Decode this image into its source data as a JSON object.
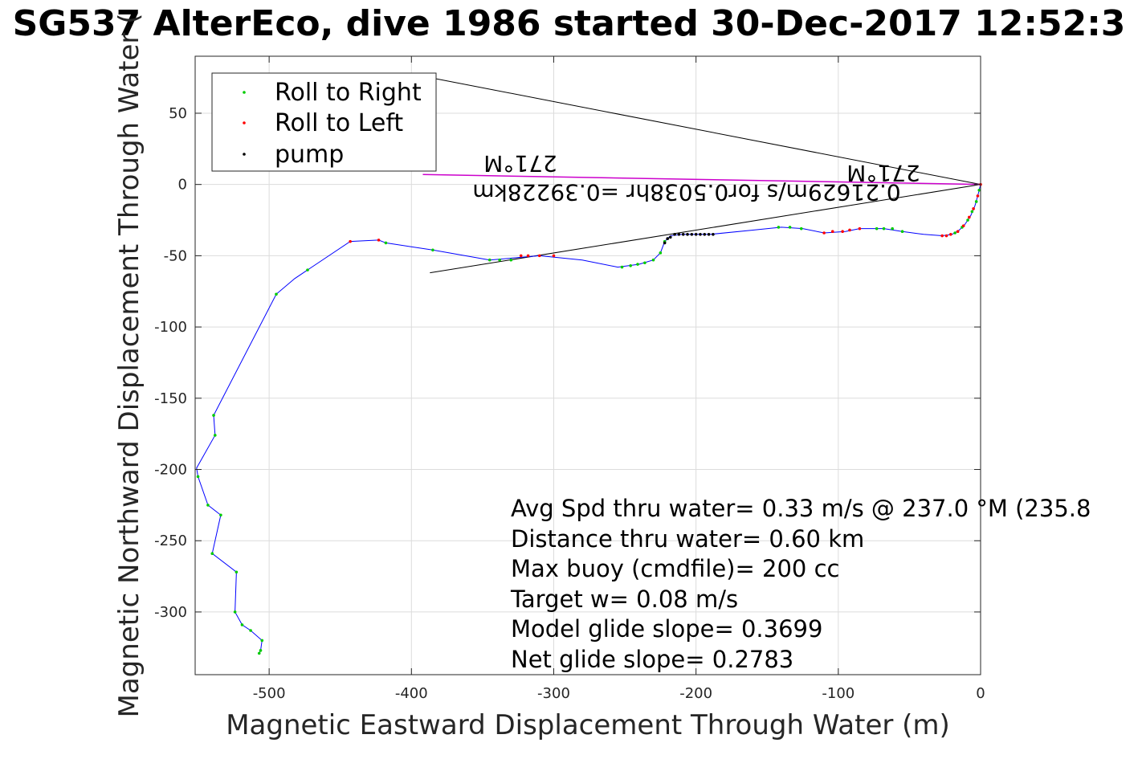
{
  "chart_data": {
    "type": "scatter",
    "title": "SG537 AlterEco, dive 1986 started 30-Dec-2017 12:52:3",
    "xlabel": "Magnetic Eastward Displacement Through Water (m)",
    "ylabel": "Magnetic Northward Displacement Through Water (",
    "xlim": [
      -552,
      0
    ],
    "ylim": [
      -344,
      90
    ],
    "xticks": [
      -500,
      -400,
      -300,
      -200,
      -100,
      0
    ],
    "yticks": [
      -300,
      -250,
      -200,
      -150,
      -100,
      -50,
      0,
      50
    ],
    "grid": true,
    "legend_position": "top-left",
    "colors": {
      "track": "#0000ff",
      "roll_right": "#00cc00",
      "roll_left": "#ff0000",
      "pump": "#000000",
      "current": "#cc00cc",
      "reference": "#000000"
    },
    "legend": [
      {
        "label": "Roll to Right",
        "color": "#00cc00"
      },
      {
        "label": "Roll to Left",
        "color": "#ff0000"
      },
      {
        "label": "pump",
        "color": "#000000"
      }
    ],
    "track": [
      [
        0,
        0
      ],
      [
        -2,
        -8
      ],
      [
        -4,
        -15
      ],
      [
        -7,
        -22
      ],
      [
        -11,
        -28
      ],
      [
        -15,
        -32
      ],
      [
        -20,
        -35
      ],
      [
        -27,
        -36
      ],
      [
        -40,
        -35
      ],
      [
        -55,
        -33
      ],
      [
        -68,
        -31
      ],
      [
        -85,
        -31
      ],
      [
        -95,
        -33
      ],
      [
        -110,
        -34
      ],
      [
        -125,
        -31
      ],
      [
        -140,
        -30
      ],
      [
        -160,
        -32
      ],
      [
        -190,
        -35
      ],
      [
        -210,
        -35
      ],
      [
        -218,
        -36
      ],
      [
        -222,
        -40
      ],
      [
        -225,
        -48
      ],
      [
        -230,
        -53
      ],
      [
        -240,
        -56
      ],
      [
        -255,
        -58
      ],
      [
        -280,
        -53
      ],
      [
        -310,
        -50
      ],
      [
        -345,
        -53
      ],
      [
        -385,
        -46
      ],
      [
        -418,
        -41
      ],
      [
        -423,
        -39
      ],
      [
        -443,
        -40
      ],
      [
        -473,
        -60
      ],
      [
        -482,
        -66
      ],
      [
        -495,
        -77
      ],
      [
        -539,
        -162
      ],
      [
        -538,
        -176
      ],
      [
        -551,
        -199
      ],
      [
        -550,
        -205
      ],
      [
        -543,
        -225
      ],
      [
        -534,
        -232
      ],
      [
        -540,
        -259
      ],
      [
        -523,
        -272
      ],
      [
        -524,
        -300
      ],
      [
        -519,
        -309
      ],
      [
        -513,
        -313
      ],
      [
        -505,
        -320
      ],
      [
        -506,
        -327
      ],
      [
        -507,
        -329
      ]
    ],
    "roll_right": [
      [
        -1,
        -4
      ],
      [
        -3,
        -12
      ],
      [
        -6,
        -19
      ],
      [
        -9,
        -25
      ],
      [
        -13,
        -30
      ],
      [
        -18,
        -34
      ],
      [
        -55,
        -33
      ],
      [
        -62,
        -31
      ],
      [
        -68,
        -31
      ],
      [
        -73,
        -31
      ],
      [
        -126,
        -31
      ],
      [
        -134,
        -30
      ],
      [
        -142,
        -30
      ],
      [
        -222,
        -40
      ],
      [
        -225,
        -48
      ],
      [
        -230,
        -53
      ],
      [
        -236,
        -55
      ],
      [
        -241,
        -56
      ],
      [
        -246,
        -57
      ],
      [
        -252,
        -58
      ],
      [
        -330,
        -53
      ],
      [
        -338,
        -53
      ],
      [
        -345,
        -53
      ],
      [
        -385,
        -46
      ],
      [
        -418,
        -41
      ],
      [
        -473,
        -60
      ],
      [
        -495,
        -77
      ],
      [
        -539,
        -162
      ],
      [
        -538,
        -176
      ],
      [
        -550,
        -205
      ],
      [
        -543,
        -225
      ],
      [
        -534,
        -232
      ],
      [
        -540,
        -259
      ],
      [
        -523,
        -272
      ],
      [
        -524,
        -300
      ],
      [
        -519,
        -309
      ],
      [
        -513,
        -313
      ],
      [
        -505,
        -320
      ],
      [
        -506,
        -327
      ],
      [
        -507,
        -329
      ]
    ],
    "roll_left": [
      [
        0,
        0
      ],
      [
        -2,
        -8
      ],
      [
        -5,
        -17
      ],
      [
        -8,
        -23
      ],
      [
        -12,
        -29
      ],
      [
        -16,
        -33
      ],
      [
        -21,
        -35
      ],
      [
        -24,
        -36
      ],
      [
        -27,
        -36
      ],
      [
        -85,
        -31
      ],
      [
        -92,
        -32
      ],
      [
        -97,
        -33
      ],
      [
        -104,
        -33
      ],
      [
        -110,
        -34
      ],
      [
        -300,
        -50
      ],
      [
        -310,
        -50
      ],
      [
        -318,
        -50
      ],
      [
        -323,
        -50
      ],
      [
        -443,
        -40
      ],
      [
        -423,
        -39
      ]
    ],
    "pump": [
      [
        -222,
        -41
      ],
      [
        -220,
        -38
      ],
      [
        -218,
        -37
      ],
      [
        -215,
        -35
      ],
      [
        -212,
        -35
      ],
      [
        -209,
        -35
      ],
      [
        -206,
        -35
      ],
      [
        -203,
        -35
      ],
      [
        -200,
        -35
      ],
      [
        -197,
        -35
      ],
      [
        -194,
        -35
      ],
      [
        -191,
        -35
      ],
      [
        -188,
        -35
      ]
    ],
    "current_line": [
      [
        -392,
        7
      ],
      [
        0,
        0
      ]
    ],
    "reference_lines": [
      [
        [
          -392,
          76
        ],
        [
          0,
          0
        ]
      ],
      [
        [
          -387,
          -62
        ],
        [
          0,
          0
        ]
      ]
    ],
    "annotations": [
      "Avg Spd thru water=  0.33 m/s @ 237.0 °M (235.8",
      "Distance thru water=  0.60 km",
      "Max buoy (cmdfile)= 200 cc",
      "Target w= 0.08 m/s",
      "Model glide slope= 0.3699",
      "Net glide slope= 0.2783"
    ],
    "flipped_labels": {
      "current": "0.21629m/s for0.5038hr =0.39228km",
      "heading_left": "271°M",
      "heading_right": "271°M"
    }
  }
}
